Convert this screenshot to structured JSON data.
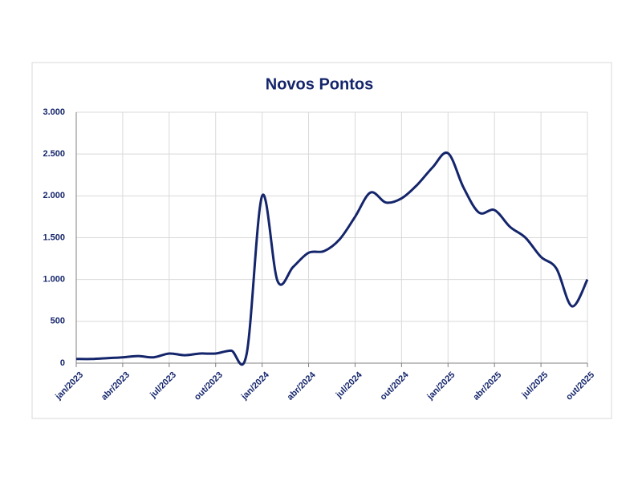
{
  "chart_data": {
    "type": "line",
    "title": "Novos Pontos",
    "categories": [
      "jan/2023",
      null,
      null,
      "abr/2023",
      null,
      null,
      "jul/2023",
      null,
      null,
      "out/2023",
      null,
      null,
      "jan/2024",
      null,
      null,
      "abr/2024",
      null,
      null,
      "jul/2024",
      null,
      null,
      "out/2024",
      null,
      null,
      "jan/2025",
      null,
      null,
      "abr/2025",
      null,
      null,
      "jul/2025",
      null,
      null,
      "out/2025"
    ],
    "series": [
      {
        "name": "Novos Pontos",
        "color": "#14256b",
        "values": [
          50,
          50,
          60,
          70,
          85,
          70,
          115,
          95,
          115,
          115,
          150,
          110,
          2000,
          980,
          1150,
          1320,
          1340,
          1480,
          1750,
          2040,
          1920,
          1970,
          2130,
          2340,
          2510,
          2100,
          1800,
          1830,
          1630,
          1500,
          1270,
          1130,
          680,
          1000
        ]
      }
    ],
    "ylim": [
      0,
      3000
    ],
    "yticks": [
      0,
      500,
      {
        "value": 1000,
        "label": "1.000"
      },
      {
        "value": 1500,
        "label": "1.500"
      },
      {
        "value": 2000,
        "label": "2.000"
      },
      {
        "value": 2500,
        "label": "2.500"
      },
      {
        "value": 3000,
        "label": "3.000"
      }
    ],
    "grid": true
  }
}
